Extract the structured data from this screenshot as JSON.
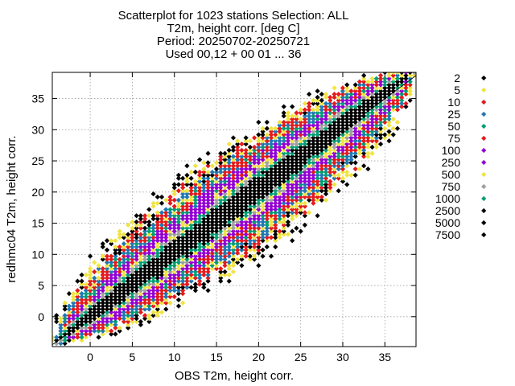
{
  "chart_data": {
    "type": "scatter",
    "title": [
      "Scatterplot for 1023 stations Selection: ALL",
      "T2m, height corr. [deg C]",
      "Period: 20250702-20250721",
      "Used 00,12 + 00 01 ... 36"
    ],
    "xlabel": "OBS T2m, height corr.",
    "ylabel": "redhmc04 T2m, height corr.",
    "xlim": [
      -4.5,
      38.7
    ],
    "ylim": [
      -4.8,
      39.2
    ],
    "x_ticks": [
      0,
      5,
      10,
      15,
      20,
      25,
      30,
      35
    ],
    "y_ticks": [
      0,
      5,
      10,
      15,
      20,
      25,
      30,
      35
    ],
    "grid": true,
    "diagonal_line": true,
    "legend_position": "right",
    "point_spacing": 0.5,
    "density_model": {
      "axis_start": [
        -3,
        -3
      ],
      "axis_end": [
        37.5,
        38.5
      ],
      "max_perpendicular_spread": 7.2,
      "comment_free_core_end_band": [
        6,
        29
      ]
    },
    "classes": [
      {
        "label": "2",
        "color": "#000000",
        "spread": 7.2
      },
      {
        "label": "5",
        "color": "#f0e442",
        "spread": 6.4
      },
      {
        "label": "10",
        "color": "#e41a1c",
        "spread": 5.7
      },
      {
        "label": "25",
        "color": "#1f78b4",
        "spread": 5.0
      },
      {
        "label": "50",
        "color": "#009e73",
        "spread": 4.4
      },
      {
        "label": "75",
        "color": "#e41a1c",
        "spread": 4.0
      },
      {
        "label": "100",
        "color": "#9400d3",
        "spread": 3.5
      },
      {
        "label": "250",
        "color": "#9400d3",
        "spread": 2.9
      },
      {
        "label": "500",
        "color": "#f0e442",
        "spread": 2.4
      },
      {
        "label": "750",
        "color": "#a0a0a0",
        "spread": 2.1
      },
      {
        "label": "1000",
        "color": "#009e73",
        "spread": 1.8
      },
      {
        "label": "2500",
        "color": "#000000",
        "spread": 1.4
      },
      {
        "label": "5000",
        "color": "#000000",
        "spread": 0.9
      },
      {
        "label": "7500",
        "color": "#000000",
        "spread": 0.4
      }
    ]
  }
}
